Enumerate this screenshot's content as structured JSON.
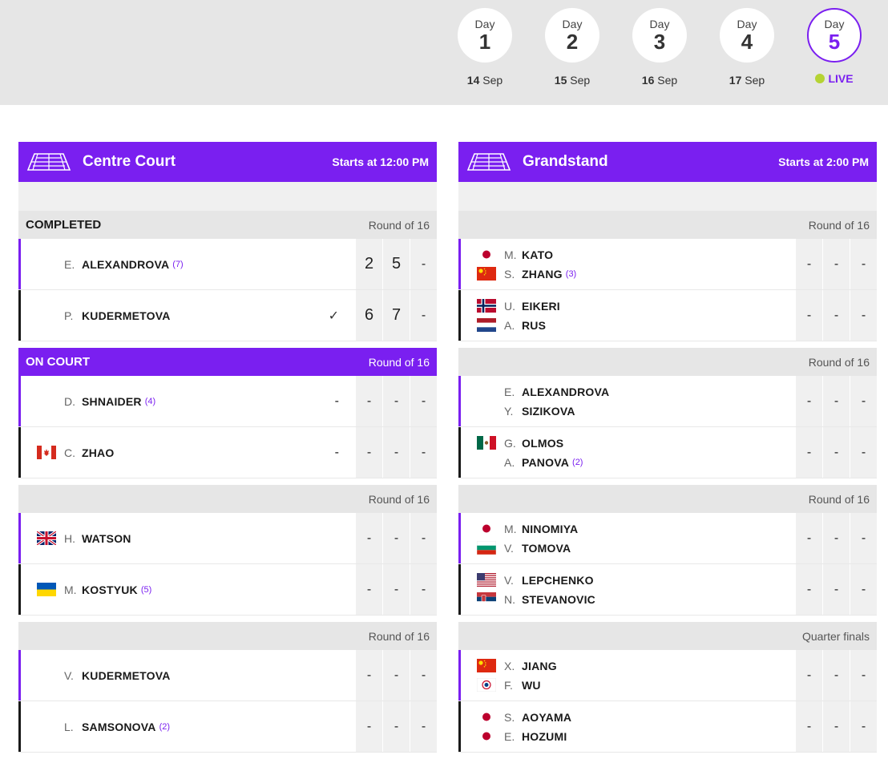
{
  "days": [
    {
      "word": "Day",
      "num": "1",
      "date_bold": "14",
      "date_rest": " Sep",
      "active": false
    },
    {
      "word": "Day",
      "num": "2",
      "date_bold": "15",
      "date_rest": " Sep",
      "active": false
    },
    {
      "word": "Day",
      "num": "3",
      "date_bold": "16",
      "date_rest": " Sep",
      "active": false
    },
    {
      "word": "Day",
      "num": "4",
      "date_bold": "17",
      "date_rest": " Sep",
      "active": false
    },
    {
      "word": "Day",
      "num": "5",
      "live_label": "LIVE",
      "active": true
    }
  ],
  "courts": [
    {
      "name": "Centre Court",
      "start": "Starts at 12:00 PM",
      "matches": [
        {
          "status": "COMPLETED",
          "round": "Round of 16",
          "live": false,
          "sides": [
            {
              "players": [
                {
                  "flag": "",
                  "initial": "E.",
                  "name": "ALEXANDROVA",
                  "seed": "(7)"
                }
              ],
              "winner": false,
              "scores": [
                "2",
                "5",
                "-"
              ]
            },
            {
              "players": [
                {
                  "flag": "",
                  "initial": "P.",
                  "name": "KUDERMETOVA",
                  "seed": ""
                }
              ],
              "winner": true,
              "scores": [
                "6",
                "7",
                "-"
              ]
            }
          ]
        },
        {
          "status": "ON COURT",
          "round": "Round of 16",
          "live": true,
          "sides": [
            {
              "players": [
                {
                  "flag": "",
                  "initial": "D.",
                  "name": "SHNAIDER",
                  "seed": "(4)"
                }
              ],
              "serve": "-",
              "scores": [
                "-",
                "-",
                "-"
              ]
            },
            {
              "players": [
                {
                  "flag": "canada",
                  "initial": "C.",
                  "name": "ZHAO",
                  "seed": ""
                }
              ],
              "serve": "-",
              "scores": [
                "-",
                "-",
                "-"
              ]
            }
          ]
        },
        {
          "status": "",
          "round": "Round of 16",
          "live": false,
          "sides": [
            {
              "players": [
                {
                  "flag": "uk",
                  "initial": "H.",
                  "name": "WATSON",
                  "seed": ""
                }
              ],
              "scores": [
                "-",
                "-",
                "-"
              ]
            },
            {
              "players": [
                {
                  "flag": "ukraine",
                  "initial": "M.",
                  "name": "KOSTYUK",
                  "seed": "(5)"
                }
              ],
              "scores": [
                "-",
                "-",
                "-"
              ]
            }
          ]
        },
        {
          "status": "",
          "round": "Round of 16",
          "live": false,
          "sides": [
            {
              "players": [
                {
                  "flag": "",
                  "initial": "V.",
                  "name": "KUDERMETOVA",
                  "seed": ""
                }
              ],
              "scores": [
                "-",
                "-",
                "-"
              ]
            },
            {
              "players": [
                {
                  "flag": "",
                  "initial": "L.",
                  "name": "SAMSONOVA",
                  "seed": "(2)"
                }
              ],
              "scores": [
                "-",
                "-",
                "-"
              ]
            }
          ]
        }
      ]
    },
    {
      "name": "Grandstand",
      "start": "Starts at 2:00 PM",
      "matches": [
        {
          "status": "",
          "round": "Round of 16",
          "live": false,
          "sides": [
            {
              "players": [
                {
                  "flag": "japan",
                  "initial": "M.",
                  "name": "KATO",
                  "seed": ""
                },
                {
                  "flag": "china",
                  "initial": "S.",
                  "name": "ZHANG",
                  "seed": "(3)"
                }
              ],
              "scores": [
                "-",
                "-",
                "-"
              ]
            },
            {
              "players": [
                {
                  "flag": "norway",
                  "initial": "U.",
                  "name": "EIKERI",
                  "seed": ""
                },
                {
                  "flag": "netherlands",
                  "initial": "A.",
                  "name": "RUS",
                  "seed": ""
                }
              ],
              "scores": [
                "-",
                "-",
                "-"
              ]
            }
          ]
        },
        {
          "status": "",
          "round": "Round of 16",
          "live": false,
          "sides": [
            {
              "players": [
                {
                  "flag": "",
                  "initial": "E.",
                  "name": "ALEXANDROVA",
                  "seed": ""
                },
                {
                  "flag": "",
                  "initial": "Y.",
                  "name": "SIZIKOVA",
                  "seed": ""
                }
              ],
              "scores": [
                "-",
                "-",
                "-"
              ]
            },
            {
              "players": [
                {
                  "flag": "mexico",
                  "initial": "G.",
                  "name": "OLMOS",
                  "seed": ""
                },
                {
                  "flag": "",
                  "initial": "A.",
                  "name": "PANOVA",
                  "seed": "(2)"
                }
              ],
              "scores": [
                "-",
                "-",
                "-"
              ]
            }
          ]
        },
        {
          "status": "",
          "round": "Round of 16",
          "live": false,
          "sides": [
            {
              "players": [
                {
                  "flag": "japan",
                  "initial": "M.",
                  "name": "NINOMIYA",
                  "seed": ""
                },
                {
                  "flag": "bulgaria",
                  "initial": "V.",
                  "name": "TOMOVA",
                  "seed": ""
                }
              ],
              "scores": [
                "-",
                "-",
                "-"
              ]
            },
            {
              "players": [
                {
                  "flag": "usa",
                  "initial": "V.",
                  "name": "LEPCHENKO",
                  "seed": ""
                },
                {
                  "flag": "serbia",
                  "initial": "N.",
                  "name": "STEVANOVIC",
                  "seed": ""
                }
              ],
              "scores": [
                "-",
                "-",
                "-"
              ]
            }
          ]
        },
        {
          "status": "",
          "round": "Quarter finals",
          "live": false,
          "sides": [
            {
              "players": [
                {
                  "flag": "china",
                  "initial": "X.",
                  "name": "JIANG",
                  "seed": ""
                },
                {
                  "flag": "taipei",
                  "initial": "F.",
                  "name": "WU",
                  "seed": ""
                }
              ],
              "scores": [
                "-",
                "-",
                "-"
              ]
            },
            {
              "players": [
                {
                  "flag": "japan",
                  "initial": "S.",
                  "name": "AOYAMA",
                  "seed": ""
                },
                {
                  "flag": "japan",
                  "initial": "E.",
                  "name": "HOZUMI",
                  "seed": ""
                }
              ],
              "scores": [
                "-",
                "-",
                "-"
              ]
            }
          ]
        }
      ]
    }
  ],
  "colors": {
    "accent": "#7a1ff0",
    "header_bg": "#e6e6e6",
    "live_ball": "#b5d334"
  }
}
